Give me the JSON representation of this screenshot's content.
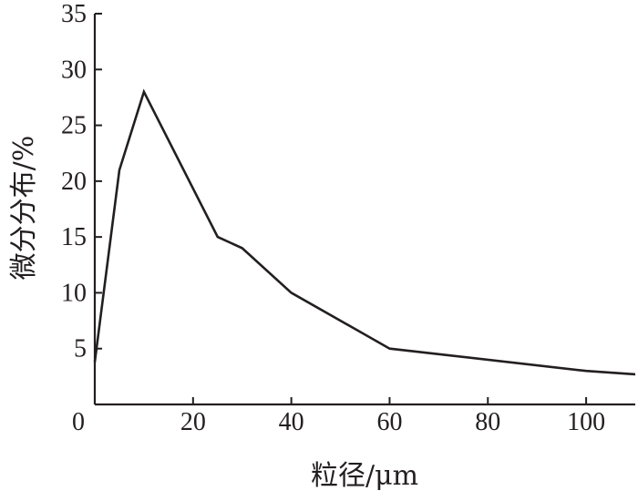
{
  "chart_data": {
    "type": "line",
    "title": "",
    "xlabel": "粒径/μm",
    "ylabel": "微分分布/%",
    "xlim": [
      0,
      110
    ],
    "ylim": [
      0,
      35
    ],
    "xticks": [
      0,
      20,
      40,
      60,
      80,
      100
    ],
    "yticks": [
      0,
      5,
      10,
      15,
      20,
      25,
      30,
      35
    ],
    "grid": false,
    "legend": "none",
    "series": [
      {
        "x": [
          0,
          5,
          10,
          25,
          30,
          40,
          60,
          100,
          110
        ],
        "values": [
          3.8,
          21,
          28,
          15,
          14,
          10,
          5,
          3,
          2.7
        ]
      }
    ]
  }
}
